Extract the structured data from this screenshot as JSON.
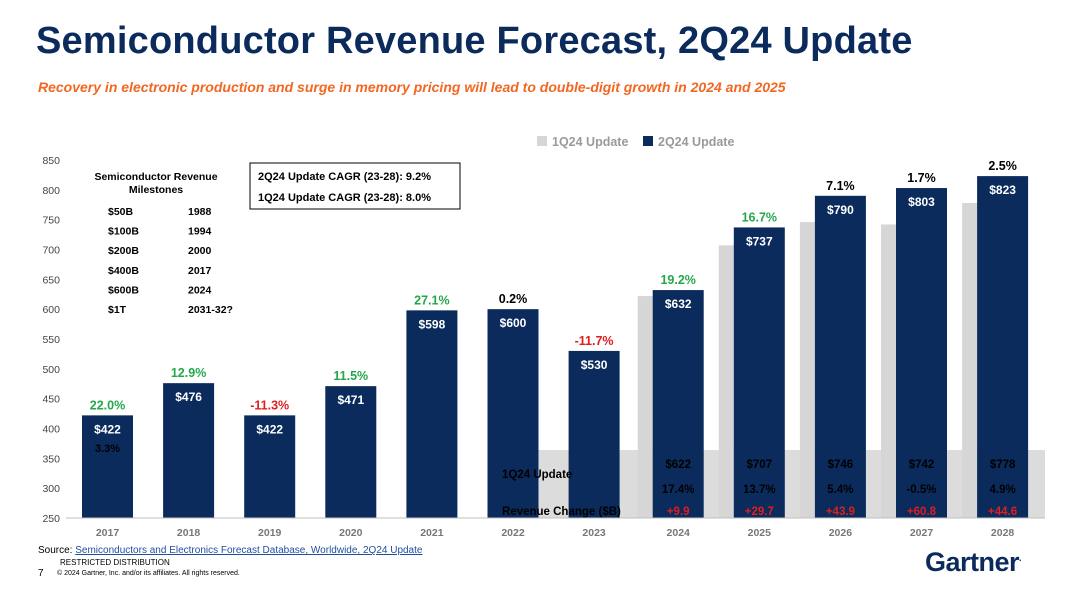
{
  "title": "Semiconductor Revenue Forecast, 2Q24 Update",
  "subtitle": "Recovery in electronic production and surge in memory pricing will lead to double-digit growth in 2024 and 2025",
  "colors": {
    "navy": "#0b2b5c",
    "gray": "#d6d6d6",
    "green": "#22a84a",
    "red": "#e01e1e",
    "orange": "#f26722",
    "table_bg": "#dcdcdc"
  },
  "chart_data": {
    "type": "bar",
    "ylim": [
      250,
      850
    ],
    "yticks": [
      "250",
      "300",
      "350",
      "400",
      "450",
      "500",
      "550",
      "600",
      "650",
      "700",
      "750",
      "800",
      "850"
    ],
    "categories": [
      "2017",
      "2018",
      "2019",
      "2020",
      "2021",
      "2022",
      "2023",
      "2024",
      "2025",
      "2026",
      "2027",
      "2028"
    ],
    "legend": [
      "1Q24 Update",
      "2Q24 Update"
    ],
    "legend_position": "top-right",
    "series": [
      {
        "name": "1Q24 Update",
        "values": [
          null,
          null,
          null,
          null,
          null,
          null,
          null,
          622,
          707,
          746,
          742,
          778
        ]
      },
      {
        "name": "2Q24 Update",
        "values": [
          422,
          476,
          422,
          471,
          598,
          600,
          530,
          632,
          737,
          790,
          803,
          823
        ]
      }
    ],
    "bar_labels": [
      "$422",
      "$476",
      "$422",
      "$471",
      "$598",
      "$600",
      "$530",
      "$632",
      "$737",
      "$790",
      "$803",
      "$823"
    ],
    "growth_labels": [
      "22.0%",
      "12.9%",
      "-11.3%",
      "11.5%",
      "27.1%",
      "0.2%",
      "-11.7%",
      "19.2%",
      "16.7%",
      "7.1%",
      "1.7%",
      "2.5%"
    ],
    "growth_colors": [
      "green",
      "green",
      "red",
      "green",
      "green",
      "black",
      "red",
      "green",
      "green",
      "black",
      "black",
      "black"
    ],
    "extra_label": "3.3%",
    "cagr_box": [
      "2Q24 Update CAGR (23-28): 9.2%",
      "1Q24 Update CAGR (23-28): 8.0%"
    ],
    "milestones": {
      "title_line1": "Semiconductor Revenue",
      "title_line2": "Milestones",
      "rows": [
        [
          "$50B",
          "1988"
        ],
        [
          "$100B",
          "1994"
        ],
        [
          "$200B",
          "2000"
        ],
        [
          "$400B",
          "2017"
        ],
        [
          "$600B",
          "2024"
        ],
        [
          "$1T",
          "2031-32?"
        ]
      ]
    },
    "table": {
      "row1_label": "1Q24 Update",
      "row2_label": "Revenue Change ($B)",
      "values": [
        "$622",
        "$707",
        "$746",
        "$742",
        "$778"
      ],
      "growth": [
        "17.4%",
        "13.7%",
        "5.4%",
        "-0.5%",
        "4.9%"
      ],
      "change": [
        "+9.9",
        "+29.7",
        "+43.9",
        "+60.8",
        "+44.6"
      ]
    }
  },
  "footer": {
    "source_prefix": "Source: ",
    "source_link": "Semiconductors and Electronics Forecast Database, Worldwide, 2Q24 Update",
    "distribution": "RESTRICTED DISTRIBUTION",
    "page": "7",
    "copyright": "© 2024 Gartner, Inc. and/or its affiliates. All rights reserved."
  },
  "logo": {
    "text": "Gartner",
    "dot": "."
  }
}
